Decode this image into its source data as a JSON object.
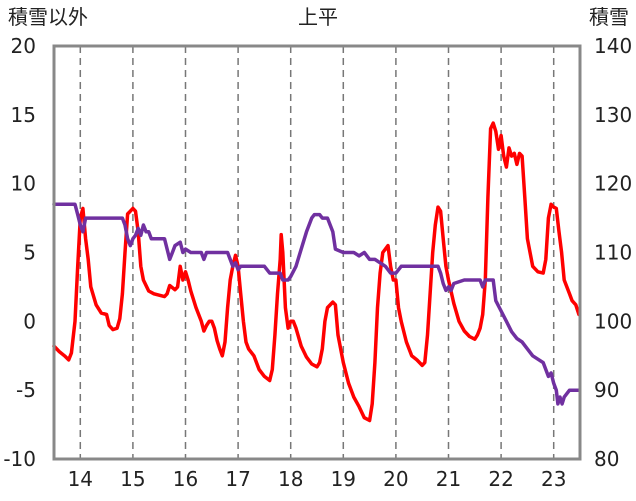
{
  "chart_data": {
    "type": "line",
    "title": "上平",
    "left_axis_label": "積雪以外",
    "right_axis_label": "積雪",
    "y_left": {
      "min": -10,
      "max": 20,
      "ticks": [
        20,
        15,
        10,
        5,
        0,
        -5,
        -10
      ]
    },
    "y_right": {
      "min": 80,
      "max": 140,
      "ticks": [
        140,
        130,
        120,
        110,
        100,
        90,
        80
      ]
    },
    "x": {
      "min": 13.5,
      "max": 23.5,
      "ticks": [
        14,
        15,
        16,
        17,
        18,
        19,
        20,
        21,
        22,
        23
      ],
      "tick_labels": [
        "14",
        "15",
        "16",
        "17",
        "18",
        "19",
        "20",
        "21",
        "22",
        "23"
      ]
    },
    "grid": {
      "vertical": "dashed",
      "horizontal": "none"
    },
    "series": [
      {
        "axis": "left",
        "color": "#ff0000",
        "points": [
          [
            13.5,
            -1.8
          ],
          [
            13.6,
            -2.2
          ],
          [
            13.7,
            -2.5
          ],
          [
            13.78,
            -2.8
          ],
          [
            13.83,
            -2.3
          ],
          [
            13.9,
            0
          ],
          [
            13.95,
            4
          ],
          [
            14.0,
            7.5
          ],
          [
            14.05,
            8.2
          ],
          [
            14.1,
            6
          ],
          [
            14.15,
            4.5
          ],
          [
            14.2,
            2.5
          ],
          [
            14.3,
            1.2
          ],
          [
            14.4,
            0.6
          ],
          [
            14.5,
            0.5
          ],
          [
            14.55,
            -0.3
          ],
          [
            14.62,
            -0.6
          ],
          [
            14.7,
            -0.5
          ],
          [
            14.75,
            0.2
          ],
          [
            14.8,
            2
          ],
          [
            14.85,
            5
          ],
          [
            14.9,
            7.8
          ],
          [
            15.0,
            8.2
          ],
          [
            15.05,
            8.0
          ],
          [
            15.1,
            6.5
          ],
          [
            15.15,
            4
          ],
          [
            15.2,
            3
          ],
          [
            15.3,
            2.2
          ],
          [
            15.4,
            2.0
          ],
          [
            15.5,
            1.9
          ],
          [
            15.6,
            1.8
          ],
          [
            15.65,
            2.0
          ],
          [
            15.7,
            2.6
          ],
          [
            15.8,
            2.3
          ],
          [
            15.85,
            2.5
          ],
          [
            15.9,
            4
          ],
          [
            15.95,
            3
          ],
          [
            16.0,
            3.6
          ],
          [
            16.05,
            3
          ],
          [
            16.1,
            2.2
          ],
          [
            16.2,
            1
          ],
          [
            16.3,
            0
          ],
          [
            16.35,
            -0.7
          ],
          [
            16.4,
            -0.3
          ],
          [
            16.45,
            0
          ],
          [
            16.5,
            0
          ],
          [
            16.55,
            -0.5
          ],
          [
            16.6,
            -1.4
          ],
          [
            16.65,
            -2
          ],
          [
            16.7,
            -2.5
          ],
          [
            16.75,
            -1.5
          ],
          [
            16.8,
            1
          ],
          [
            16.85,
            3
          ],
          [
            16.9,
            4
          ],
          [
            16.95,
            4.8
          ],
          [
            17.0,
            4
          ],
          [
            17.05,
            2
          ],
          [
            17.1,
            0
          ],
          [
            17.15,
            -1.5
          ],
          [
            17.2,
            -2
          ],
          [
            17.3,
            -2.5
          ],
          [
            17.4,
            -3.5
          ],
          [
            17.5,
            -4
          ],
          [
            17.6,
            -4.3
          ],
          [
            17.65,
            -3.5
          ],
          [
            17.7,
            -1
          ],
          [
            17.75,
            2
          ],
          [
            17.8,
            4.5
          ],
          [
            17.82,
            6.3
          ],
          [
            17.85,
            5
          ],
          [
            17.9,
            1
          ],
          [
            17.95,
            -0.5
          ],
          [
            18.0,
            0
          ],
          [
            18.05,
            0
          ],
          [
            18.1,
            -0.5
          ],
          [
            18.2,
            -1.8
          ],
          [
            18.3,
            -2.6
          ],
          [
            18.4,
            -3.1
          ],
          [
            18.5,
            -3.3
          ],
          [
            18.55,
            -3
          ],
          [
            18.6,
            -2
          ],
          [
            18.65,
            0
          ],
          [
            18.7,
            1
          ],
          [
            18.8,
            1.4
          ],
          [
            18.85,
            1.2
          ],
          [
            18.9,
            -1
          ],
          [
            19.0,
            -3
          ],
          [
            19.1,
            -4.5
          ],
          [
            19.2,
            -5.5
          ],
          [
            19.3,
            -6.2
          ],
          [
            19.4,
            -7
          ],
          [
            19.5,
            -7.2
          ],
          [
            19.55,
            -6
          ],
          [
            19.6,
            -3
          ],
          [
            19.65,
            1
          ],
          [
            19.7,
            3.5
          ],
          [
            19.75,
            5
          ],
          [
            19.85,
            5.5
          ],
          [
            19.9,
            4
          ],
          [
            19.95,
            3
          ],
          [
            20.0,
            3
          ],
          [
            20.05,
            1
          ],
          [
            20.1,
            0
          ],
          [
            20.2,
            -1.5
          ],
          [
            20.3,
            -2.5
          ],
          [
            20.4,
            -2.8
          ],
          [
            20.5,
            -3.2
          ],
          [
            20.55,
            -3
          ],
          [
            20.6,
            -1
          ],
          [
            20.65,
            2
          ],
          [
            20.7,
            5
          ],
          [
            20.75,
            7
          ],
          [
            20.8,
            8.3
          ],
          [
            20.85,
            8
          ],
          [
            20.9,
            6
          ],
          [
            20.95,
            4
          ],
          [
            21.0,
            3
          ],
          [
            21.1,
            1.3
          ],
          [
            21.2,
            0
          ],
          [
            21.3,
            -0.7
          ],
          [
            21.4,
            -1.1
          ],
          [
            21.5,
            -1.3
          ],
          [
            21.55,
            -1.0
          ],
          [
            21.6,
            -0.5
          ],
          [
            21.65,
            0.5
          ],
          [
            21.7,
            3
          ],
          [
            21.75,
            9
          ],
          [
            21.8,
            14
          ],
          [
            21.85,
            14.4
          ],
          [
            21.9,
            13.8
          ],
          [
            21.95,
            12.5
          ],
          [
            22.0,
            13.5
          ],
          [
            22.05,
            12
          ],
          [
            22.1,
            11.2
          ],
          [
            22.15,
            12.6
          ],
          [
            22.2,
            12
          ],
          [
            22.25,
            12.2
          ],
          [
            22.3,
            11.4
          ],
          [
            22.35,
            12.2
          ],
          [
            22.4,
            12
          ],
          [
            22.45,
            9
          ],
          [
            22.5,
            6
          ],
          [
            22.6,
            4
          ],
          [
            22.7,
            3.6
          ],
          [
            22.8,
            3.5
          ],
          [
            22.85,
            4.5
          ],
          [
            22.9,
            7.5
          ],
          [
            22.95,
            8.5
          ],
          [
            23.0,
            8.3
          ],
          [
            23.05,
            8.2
          ],
          [
            23.1,
            6.5
          ],
          [
            23.15,
            5
          ],
          [
            23.2,
            3
          ],
          [
            23.3,
            2
          ],
          [
            23.35,
            1.5
          ],
          [
            23.42,
            1.2
          ],
          [
            23.48,
            0.5
          ]
        ]
      },
      {
        "axis": "right",
        "color": "#7030a0",
        "points": [
          [
            13.5,
            117
          ],
          [
            13.9,
            117
          ],
          [
            13.95,
            115.5
          ],
          [
            14.0,
            114
          ],
          [
            14.05,
            113
          ],
          [
            14.1,
            115
          ],
          [
            14.2,
            115
          ],
          [
            14.8,
            115
          ],
          [
            14.85,
            114
          ],
          [
            14.9,
            112
          ],
          [
            14.95,
            111
          ],
          [
            15.0,
            112
          ],
          [
            15.05,
            112.5
          ],
          [
            15.1,
            113.5
          ],
          [
            15.15,
            112.5
          ],
          [
            15.2,
            114
          ],
          [
            15.25,
            113
          ],
          [
            15.3,
            113
          ],
          [
            15.35,
            112
          ],
          [
            15.6,
            112
          ],
          [
            15.7,
            109
          ],
          [
            15.75,
            110
          ],
          [
            15.8,
            111
          ],
          [
            15.9,
            111.5
          ],
          [
            15.95,
            110
          ],
          [
            16.0,
            110.5
          ],
          [
            16.1,
            110
          ],
          [
            16.3,
            110
          ],
          [
            16.35,
            109
          ],
          [
            16.4,
            110
          ],
          [
            16.8,
            110
          ],
          [
            16.85,
            109
          ],
          [
            16.9,
            108
          ],
          [
            16.95,
            108.5
          ],
          [
            17.0,
            107.5
          ],
          [
            17.05,
            108
          ],
          [
            17.3,
            108
          ],
          [
            17.5,
            108
          ],
          [
            17.6,
            107
          ],
          [
            17.8,
            107
          ],
          [
            17.85,
            106
          ],
          [
            17.95,
            106
          ],
          [
            18.0,
            106.5
          ],
          [
            18.1,
            108
          ],
          [
            18.2,
            110.5
          ],
          [
            18.3,
            113
          ],
          [
            18.4,
            115
          ],
          [
            18.45,
            115.5
          ],
          [
            18.55,
            115.5
          ],
          [
            18.6,
            115
          ],
          [
            18.7,
            115
          ],
          [
            18.8,
            113
          ],
          [
            18.85,
            110.5
          ],
          [
            19.0,
            110
          ],
          [
            19.2,
            110
          ],
          [
            19.3,
            109.5
          ],
          [
            19.4,
            110
          ],
          [
            19.5,
            109
          ],
          [
            19.6,
            109
          ],
          [
            19.7,
            108.5
          ],
          [
            19.8,
            108
          ],
          [
            19.9,
            107
          ],
          [
            20.0,
            107
          ],
          [
            20.1,
            108
          ],
          [
            20.2,
            108
          ],
          [
            20.4,
            108
          ],
          [
            20.8,
            108
          ],
          [
            20.85,
            107
          ],
          [
            20.9,
            105.5
          ],
          [
            20.95,
            104.5
          ],
          [
            21.0,
            105
          ],
          [
            21.05,
            104.5
          ],
          [
            21.1,
            105.5
          ],
          [
            21.3,
            106
          ],
          [
            21.6,
            106
          ],
          [
            21.65,
            105
          ],
          [
            21.7,
            106
          ],
          [
            21.85,
            106
          ],
          [
            21.9,
            103
          ],
          [
            22.0,
            101.5
          ],
          [
            22.1,
            100
          ],
          [
            22.2,
            98.5
          ],
          [
            22.3,
            97.5
          ],
          [
            22.4,
            97
          ],
          [
            22.5,
            96
          ],
          [
            22.6,
            95
          ],
          [
            22.7,
            94.5
          ],
          [
            22.8,
            94
          ],
          [
            22.85,
            93
          ],
          [
            22.9,
            92
          ],
          [
            22.95,
            92.5
          ],
          [
            23.0,
            91
          ],
          [
            23.05,
            90
          ],
          [
            23.08,
            88
          ],
          [
            23.12,
            89
          ],
          [
            23.16,
            88
          ],
          [
            23.2,
            89
          ],
          [
            23.3,
            90
          ],
          [
            23.48,
            90
          ]
        ]
      }
    ]
  }
}
